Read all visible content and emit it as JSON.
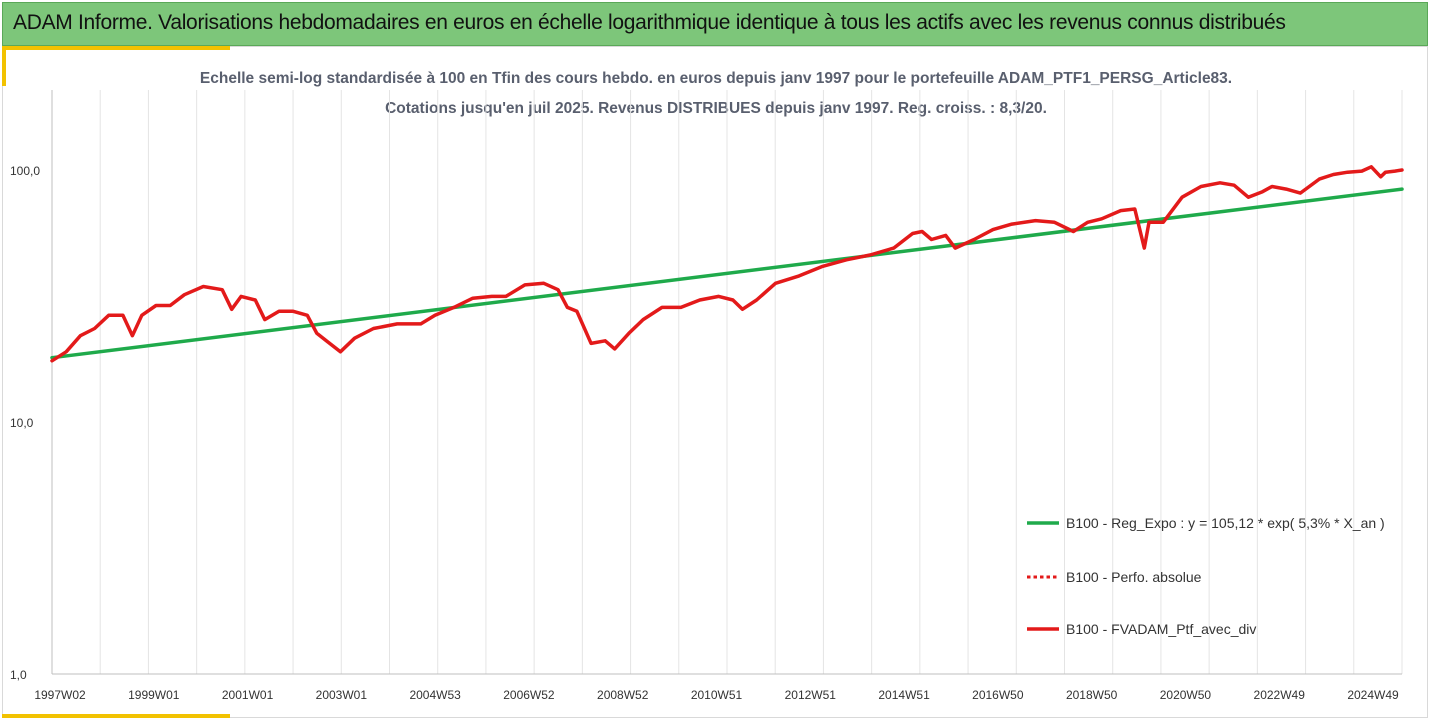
{
  "header": {
    "title": "ADAM Informe. Valorisations hebdomadaires en euros en échelle logarithmique identique à tous les actifs avec les revenus connus distribués"
  },
  "chart_data": {
    "type": "line",
    "title_line1": "Echelle semi-log standardisée à 100 en Tfin des cours hebdo.  en euros depuis janv 1997 pour le portefeuille ADAM_PTF1_PERSG_Article83.",
    "title_line2": "Cotations jusqu'en juil 2025. Revenus DISTRIBUES depuis janv 1997. Reg. croiss. : 8,3/20.",
    "y_scale": "log",
    "ylim": [
      1,
      200
    ],
    "y_ticks": [
      {
        "value": 1,
        "label": "1,0"
      },
      {
        "value": 10,
        "label": "10,0"
      },
      {
        "value": 100,
        "label": "100,0"
      }
    ],
    "x_tick_labels": [
      "1997W02",
      "1999W01",
      "2001W01",
      "2003W01",
      "2004W53",
      "2006W52",
      "2008W52",
      "2010W51",
      "2012W51",
      "2014W51",
      "2016W50",
      "2018W50",
      "2020W50",
      "2022W49",
      "2024W49"
    ],
    "x_unit": "year",
    "xlim": [
      1997.0,
      2025.55
    ],
    "grid": "vertical",
    "legend_position": "bottom-right",
    "series": [
      {
        "name": "B100 - Reg_Expo : y = 105,12 * exp( 5,3% *  X_an )",
        "color": "#1faa4b",
        "style": "solid",
        "x": [
          1997.0,
          2025.55
        ],
        "values": [
          18.0,
          84.0
        ]
      },
      {
        "name": "B100 - Perfo. absolue",
        "color": "#e31a1a",
        "style": "dotted",
        "x": [],
        "values": []
      },
      {
        "name": "B100 - FVADAM_Ptf_avec_div",
        "color": "#e31a1a",
        "style": "solid",
        "x": [
          1997.0,
          1997.3,
          1997.6,
          1997.9,
          1998.2,
          1998.5,
          1998.7,
          1998.9,
          1999.2,
          1999.5,
          1999.8,
          2000.2,
          2000.6,
          2000.8,
          2001.0,
          2001.3,
          2001.5,
          2001.8,
          2002.1,
          2002.4,
          2002.6,
          2002.8,
          2003.1,
          2003.4,
          2003.8,
          2004.3,
          2004.8,
          2005.1,
          2005.5,
          2005.9,
          2006.3,
          2006.6,
          2007.0,
          2007.4,
          2007.7,
          2007.9,
          2008.1,
          2008.4,
          2008.7,
          2008.9,
          2009.2,
          2009.5,
          2009.9,
          2010.3,
          2010.7,
          2011.1,
          2011.4,
          2011.6,
          2011.9,
          2012.3,
          2012.8,
          2013.3,
          2013.8,
          2014.3,
          2014.8,
          2015.2,
          2015.4,
          2015.6,
          2015.9,
          2016.1,
          2016.5,
          2016.9,
          2017.3,
          2017.8,
          2018.2,
          2018.6,
          2018.9,
          2019.2,
          2019.6,
          2019.9,
          2020.1,
          2020.2,
          2020.5,
          2020.9,
          2021.3,
          2021.7,
          2022.0,
          2022.3,
          2022.6,
          2022.8,
          2023.1,
          2023.4,
          2023.8,
          2024.1,
          2024.4,
          2024.7,
          2024.9,
          2025.1,
          2025.2,
          2025.4,
          2025.55
        ],
        "values": [
          17.5,
          19.0,
          22.0,
          23.5,
          26.5,
          26.5,
          22.0,
          26.5,
          29.0,
          29.0,
          32.0,
          34.5,
          33.5,
          28.0,
          31.5,
          30.5,
          25.5,
          27.5,
          27.5,
          26.5,
          22.5,
          21.0,
          19.0,
          21.5,
          23.5,
          24.5,
          24.5,
          26.5,
          28.5,
          31.0,
          31.5,
          31.5,
          35.0,
          35.5,
          33.5,
          28.5,
          27.5,
          20.5,
          21.0,
          19.5,
          22.5,
          25.5,
          28.5,
          28.5,
          30.5,
          31.5,
          30.5,
          28.0,
          30.5,
          35.5,
          38.0,
          41.5,
          44.0,
          46.0,
          49.0,
          56.0,
          57.0,
          53.0,
          55.0,
          49.0,
          53.0,
          58.0,
          61.0,
          63.0,
          62.0,
          57.0,
          62.0,
          64.0,
          69.0,
          70.0,
          49.0,
          62.0,
          62.0,
          78.0,
          86.0,
          89.0,
          87.0,
          78.0,
          82.0,
          86.0,
          84.0,
          81.0,
          92.0,
          96.0,
          98.0,
          99.0,
          103.0,
          94.0,
          98.0,
          99.0,
          100.0
        ]
      }
    ]
  }
}
